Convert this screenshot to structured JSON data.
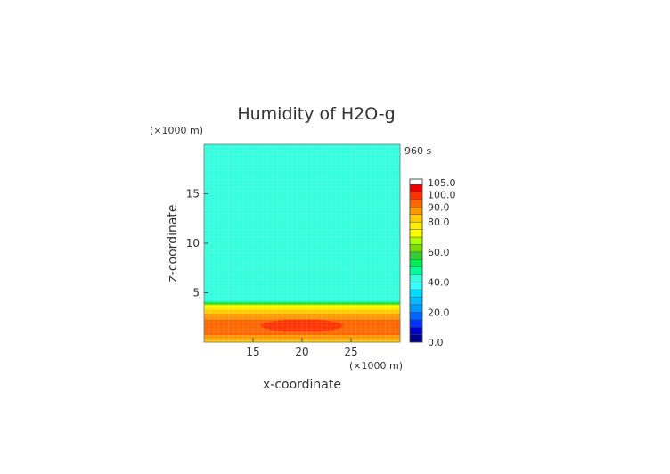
{
  "chart_data": {
    "type": "heatmap",
    "title": "Humidity of H2O-g",
    "time_label": "960 s",
    "xlabel": "x-coordinate",
    "ylabel": "z-coordinate",
    "x_unit": "(×1000 m)",
    "y_unit": "(×1000 m)",
    "xlim": [
      10,
      30
    ],
    "ylim": [
      0,
      20
    ],
    "x_ticks": [
      15,
      20,
      25
    ],
    "y_ticks": [
      5,
      10,
      15
    ],
    "colorbar": {
      "levels": [
        0,
        5,
        10,
        15,
        20,
        25,
        30,
        35,
        40,
        45,
        50,
        55,
        60,
        65,
        70,
        75,
        80,
        85,
        90,
        95,
        100,
        105
      ],
      "colors": [
        "#00008b",
        "#0000cd",
        "#0033ff",
        "#0066ff",
        "#0099ff",
        "#00bbff",
        "#00ddff",
        "#33ffff",
        "#33ffdd",
        "#00ff99",
        "#00ee55",
        "#33cc33",
        "#77dd00",
        "#aaff00",
        "#ffff00",
        "#ffee00",
        "#ffcc00",
        "#ff9900",
        "#ff6600",
        "#ff3300",
        "#ee0000"
      ],
      "tick_values": [
        0,
        20,
        40,
        60,
        80,
        90,
        100,
        105
      ],
      "tick_labels": [
        "0.0",
        "20.0",
        "40.0",
        "60.0",
        "80.0",
        "90.0",
        "100.0",
        "105.0"
      ],
      "top_color": "#ffffff"
    },
    "field": {
      "background_value": 42,
      "z_profile": [
        {
          "z": 0.0,
          "value": 82
        },
        {
          "z": 0.5,
          "value": 88
        },
        {
          "z": 1.0,
          "value": 92
        },
        {
          "z": 1.6,
          "value": 95
        },
        {
          "z": 2.2,
          "value": 91
        },
        {
          "z": 2.8,
          "value": 86
        },
        {
          "z": 3.3,
          "value": 80
        },
        {
          "z": 3.7,
          "value": 72
        },
        {
          "z": 3.9,
          "value": 62
        },
        {
          "z": 4.2,
          "value": 42
        }
      ],
      "core": {
        "x_center": 20,
        "z_center": 1.7,
        "x_halfwidth": 4.2,
        "z_halfwidth": 0.65,
        "value": 100
      }
    }
  }
}
